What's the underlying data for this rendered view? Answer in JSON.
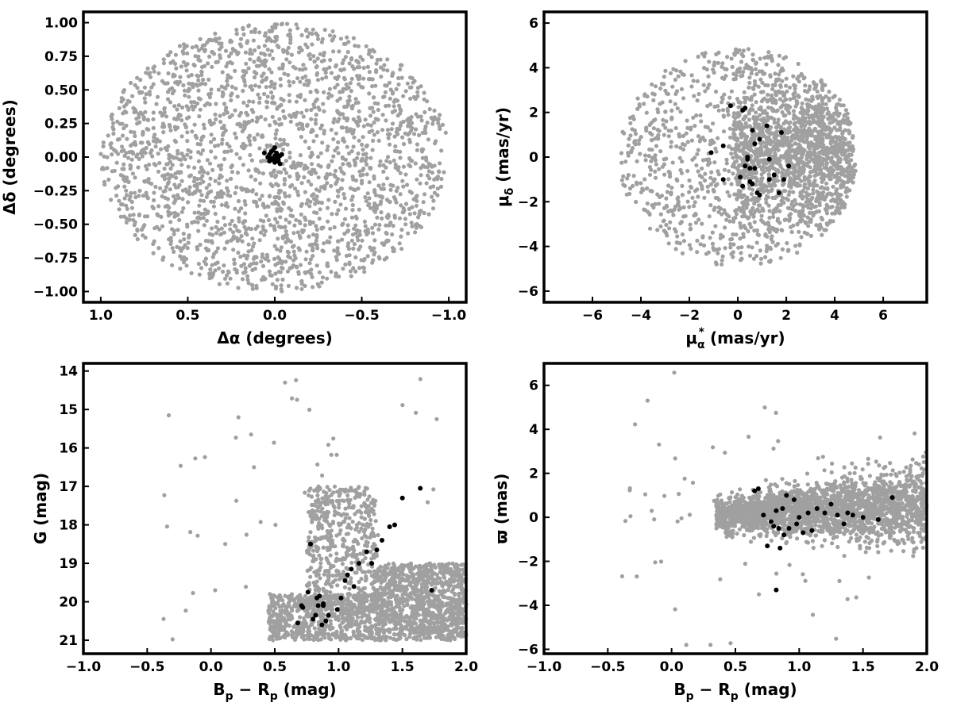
{
  "chart_data": [
    {
      "id": "sky",
      "type": "scatter",
      "xlabel": "Δα (degrees)",
      "ylabel": "Δδ (degrees)",
      "xlim": [
        1.1,
        -1.1
      ],
      "ylim": [
        -1.08,
        1.08
      ],
      "xticks": [
        1.0,
        0.5,
        0.0,
        -0.5,
        -1.0
      ],
      "xtick_labels": [
        "1.0",
        "0.5",
        "0.0",
        "−0.5",
        "−1.0"
      ],
      "yticks": [
        -1.0,
        -0.75,
        -0.5,
        -0.25,
        0.0,
        0.25,
        0.5,
        0.75,
        1.0
      ],
      "ytick_labels": [
        "−1.00",
        "−0.75",
        "−0.50",
        "−0.25",
        "0.00",
        "0.25",
        "0.50",
        "0.75",
        "1.00"
      ],
      "grid": false,
      "series": [
        {
          "color": "#a0a0a0",
          "description_points": 2200,
          "distribution": {
            "shape": "disk",
            "center": [
              0,
              0
            ],
            "radius": 1.0
          }
        },
        {
          "color": "#000000",
          "x": [
            0.03,
            0.0,
            -0.02,
            0.01,
            -0.03,
            0.02,
            0.0,
            -0.01,
            0.04,
            -0.04,
            0.01,
            -0.02,
            0.02,
            0.0,
            0.06,
            -0.03,
            0.0,
            -0.01,
            0.03,
            -0.02
          ],
          "y": [
            0.02,
            0.0,
            -0.02,
            0.05,
            0.01,
            -0.01,
            -0.04,
            0.03,
            0.0,
            0.02,
            -0.02,
            -0.03,
            0.04,
            0.07,
            0.03,
            -0.05,
            0.01,
            -0.01,
            -0.03,
            0.0
          ]
        }
      ]
    },
    {
      "id": "pm",
      "type": "scatter",
      "xlabel_main": "μ",
      "xlabel_sub": "α",
      "xlabel_sup": "*",
      "xlabel_unit": " (mas/yr)",
      "ylabel_main": "μ",
      "ylabel_sub": "δ",
      "ylabel_unit": " (mas/yr)",
      "xlim": [
        -8.0,
        7.8
      ],
      "ylim": [
        -6.5,
        6.5
      ],
      "xticks": [
        -6,
        -4,
        -2,
        0,
        2,
        4,
        6
      ],
      "xtick_labels": [
        "−6",
        "−4",
        "−2",
        "0",
        "2",
        "4",
        "6"
      ],
      "yticks": [
        -6,
        -4,
        -2,
        0,
        2,
        4,
        6
      ],
      "ytick_labels": [
        "−6",
        "−4",
        "−2",
        "0",
        "2",
        "4",
        "6"
      ],
      "grid": false,
      "series": [
        {
          "color": "#a0a0a0",
          "description_points": 2200,
          "distribution": {
            "shape": "disk_clipped",
            "center": [
              2.4,
              0.0
            ],
            "radius": 4.9,
            "dense_region": [
              [
                0,
                -2
              ],
              [
                5,
                2
              ]
            ]
          }
        },
        {
          "color": "#000000",
          "x": [
            -0.3,
            0.3,
            0.2,
            0.6,
            -1.1,
            -0.6,
            0.9,
            1.2,
            1.8,
            2.1,
            1.3,
            1.5,
            0.4,
            0.7,
            0.1,
            -0.6,
            0.5,
            0.6,
            0.2,
            0.9,
            0.8,
            1.7,
            1.3,
            0.4,
            1.9,
            0.5,
            0.3,
            0.7
          ],
          "y": [
            2.3,
            2.2,
            2.1,
            1.2,
            0.2,
            0.5,
            0.8,
            1.4,
            1.1,
            -0.4,
            -0.1,
            -0.8,
            -0.1,
            -0.5,
            -0.9,
            -1.0,
            -1.1,
            -1.2,
            -1.3,
            -1.7,
            -1.6,
            -1.6,
            -1.0,
            0.0,
            -1.0,
            -0.5,
            -0.4,
            0.6
          ]
        }
      ]
    },
    {
      "id": "cmd",
      "type": "scatter",
      "xlabel_main": "B",
      "xlabel_sub1": "p",
      "xlabel_mid": " − R",
      "xlabel_sub2": "p",
      "xlabel_unit": " (mag)",
      "ylabel": "G (mag)",
      "xlim": [
        -1.0,
        2.0
      ],
      "ylim": [
        21.35,
        13.8
      ],
      "xticks": [
        -1.0,
        -0.5,
        0.0,
        0.5,
        1.0,
        1.5,
        2.0
      ],
      "xtick_labels": [
        "−1.0",
        "−0.5",
        "0.0",
        "0.5",
        "1.0",
        "1.5",
        "2.0"
      ],
      "yticks": [
        14,
        15,
        16,
        17,
        18,
        19,
        20,
        21
      ],
      "ytick_labels": [
        "14",
        "15",
        "16",
        "17",
        "18",
        "19",
        "20",
        "21"
      ],
      "grid": false,
      "series": [
        {
          "color": "#a0a0a0",
          "description_points": 2300
        },
        {
          "color": "#000000",
          "x": [
            0.68,
            0.72,
            0.76,
            0.8,
            0.82,
            0.84,
            0.87,
            0.9,
            0.92,
            0.83,
            0.85,
            0.88,
            0.99,
            1.02,
            1.05,
            1.07,
            1.1,
            1.12,
            1.16,
            1.22,
            1.26,
            1.3,
            1.34,
            1.4,
            1.44,
            1.5,
            1.64,
            1.73,
            0.78,
            0.88,
            0.71
          ],
          "y": [
            20.55,
            20.15,
            19.75,
            20.45,
            20.35,
            20.1,
            20.6,
            20.5,
            20.35,
            19.9,
            19.85,
            20.05,
            20.2,
            19.9,
            19.45,
            19.3,
            19.15,
            19.6,
            19.0,
            18.7,
            19.0,
            18.65,
            18.4,
            18.05,
            18.0,
            17.3,
            17.05,
            19.7,
            18.5,
            20.1,
            20.1
          ]
        }
      ]
    },
    {
      "id": "plx",
      "type": "scatter",
      "xlabel_main": "B",
      "xlabel_sub1": "p",
      "xlabel_mid": " − R",
      "xlabel_sub2": "p",
      "xlabel_unit": " (mag)",
      "ylabel": "ϖ (mas)",
      "xlim": [
        -1.0,
        2.0
      ],
      "ylim": [
        -6.2,
        7.0
      ],
      "xticks": [
        -1.0,
        -0.5,
        0.0,
        0.5,
        1.0,
        1.5,
        2.0
      ],
      "xtick_labels": [
        "−1.0",
        "−0.5",
        "0.0",
        "0.5",
        "1.0",
        "1.5",
        "2.0"
      ],
      "yticks": [
        -6,
        -4,
        -2,
        0,
        2,
        4,
        6
      ],
      "ytick_labels": [
        "−6",
        "−4",
        "−2",
        "0",
        "2",
        "4",
        "6"
      ],
      "grid": false,
      "series": [
        {
          "color": "#a0a0a0",
          "description_points": 2300
        },
        {
          "color": "#000000",
          "x": [
            0.65,
            0.68,
            0.72,
            0.75,
            0.78,
            0.8,
            0.82,
            0.85,
            0.87,
            0.9,
            0.92,
            0.96,
            0.98,
            1.0,
            1.03,
            1.07,
            1.1,
            1.14,
            1.2,
            1.25,
            1.3,
            1.35,
            1.38,
            1.42,
            1.5,
            1.62,
            1.73,
            0.84,
            0.82,
            0.88
          ],
          "y": [
            1.2,
            1.3,
            0.1,
            -1.3,
            -0.2,
            -0.4,
            0.3,
            -1.4,
            0.4,
            1.0,
            -0.5,
            0.8,
            -0.3,
            0.0,
            -0.7,
            0.2,
            -0.6,
            0.4,
            0.2,
            0.6,
            0.1,
            -0.3,
            0.2,
            0.1,
            0.0,
            -0.1,
            0.9,
            -0.5,
            -3.3,
            -0.8
          ]
        }
      ]
    }
  ]
}
